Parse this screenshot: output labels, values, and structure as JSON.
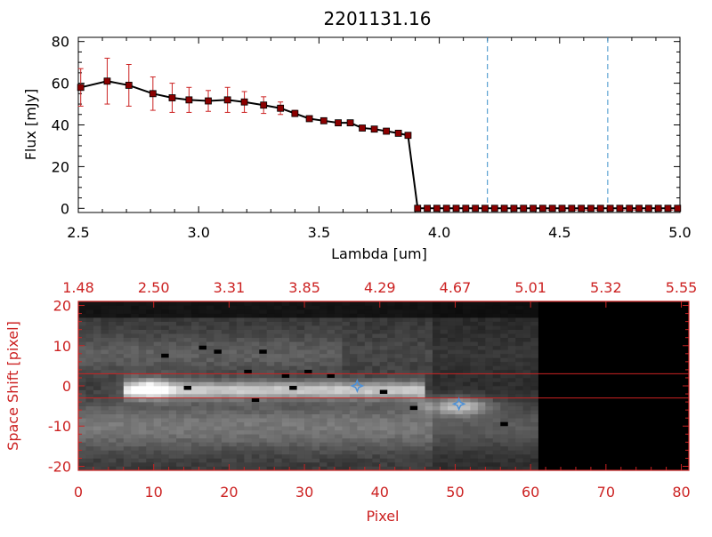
{
  "chart_data": [
    {
      "type": "line",
      "title": "2201131.16",
      "xlabel": "Lambda [um]",
      "ylabel": "Flux [mJy]",
      "xlim": [
        2.5,
        5.0
      ],
      "ylim": [
        -2,
        82
      ],
      "xticks": [
        "2.5",
        "3.0",
        "3.5",
        "4.0",
        "4.5",
        "5.0"
      ],
      "yticks": [
        "0",
        "20",
        "40",
        "60",
        "80"
      ],
      "grid": false,
      "reference_lines_x": [
        4.2,
        4.7
      ],
      "series": [
        {
          "x": [
            2.51,
            2.62,
            2.71,
            2.81,
            2.89,
            2.96,
            3.04,
            3.12,
            3.19,
            3.27,
            3.34,
            3.4,
            3.46,
            3.52,
            3.58,
            3.63,
            3.68,
            3.73,
            3.78,
            3.83,
            3.87,
            3.91,
            3.95,
            3.99,
            4.03,
            4.07,
            4.11,
            4.15,
            4.19,
            4.23,
            4.27,
            4.31,
            4.35,
            4.39,
            4.43,
            4.47,
            4.51,
            4.55,
            4.59,
            4.63,
            4.67,
            4.71,
            4.75,
            4.79,
            4.83,
            4.87,
            4.91,
            4.95,
            4.99
          ],
          "y": [
            58,
            61,
            59,
            55,
            53,
            52,
            51.5,
            52,
            51,
            49.5,
            48,
            45.5,
            43,
            42,
            41,
            41,
            38.5,
            38,
            37,
            36,
            35,
            0,
            0,
            0,
            0,
            0,
            0,
            0,
            0,
            0,
            0,
            0,
            0,
            0,
            0,
            0,
            0,
            0,
            0,
            0,
            0,
            0,
            0,
            0,
            0,
            0,
            0,
            0,
            0
          ],
          "yerr": [
            9,
            11,
            10,
            8,
            7,
            6,
            5,
            6,
            5,
            4,
            3,
            1.5,
            1,
            1,
            1,
            1,
            1,
            1,
            1,
            1,
            1,
            0,
            0,
            0,
            0,
            0,
            0,
            0,
            0,
            0,
            0,
            0,
            0,
            0,
            0,
            0,
            0,
            0,
            0,
            0,
            0,
            0,
            0,
            0,
            0,
            0,
            0,
            0,
            0
          ],
          "color": "#000000",
          "marker_color": "#8b0000",
          "error_color": "#cc2222"
        }
      ]
    },
    {
      "type": "heatmap",
      "xlabel": "Pixel",
      "ylabel": "Space Shift [pixel]",
      "xlim": [
        0,
        81
      ],
      "ylim": [
        -21,
        21
      ],
      "xticks": [
        "0",
        "10",
        "20",
        "30",
        "40",
        "50",
        "60",
        "70",
        "80"
      ],
      "yticks": [
        "-20",
        "-10",
        "0",
        "10",
        "20"
      ],
      "top_axis_label_values": [
        "1.48",
        "2.50",
        "3.31",
        "3.85",
        "4.29",
        "4.67",
        "5.01",
        "5.32",
        "5.55"
      ],
      "horizontal_lines_y": [
        3,
        -3
      ],
      "trace_y": -1,
      "trace_x_range": [
        6,
        45
      ],
      "data_x_range": [
        0,
        61
      ],
      "markers": [
        {
          "x": 37,
          "y": 0,
          "symbol": "star",
          "color": "#4a90d9"
        },
        {
          "x": 50.5,
          "y": -4.5,
          "symbol": "star",
          "color": "#4a90d9"
        }
      ],
      "frame_color": "#cc2222"
    }
  ]
}
